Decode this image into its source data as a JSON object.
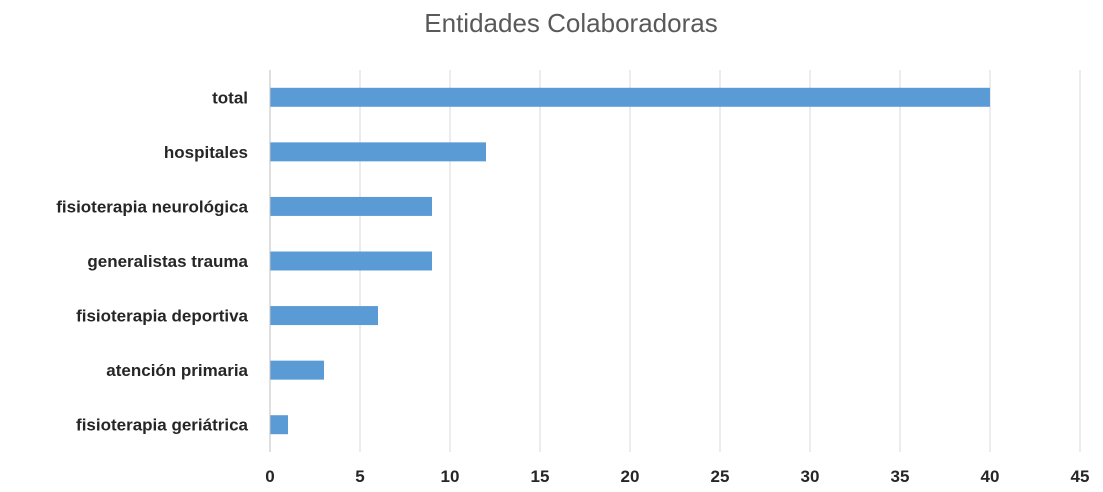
{
  "chart_data": {
    "type": "bar",
    "orientation": "horizontal",
    "title": "Entidades Colaboradoras",
    "categories": [
      "total",
      "hospitales",
      "fisioterapia neurológica",
      "generalistas trauma",
      "fisioterapia deportiva",
      "atención primaria",
      "fisioterapia geriátrica"
    ],
    "values": [
      40,
      12,
      9,
      9,
      6,
      3,
      1
    ],
    "xlim": [
      0,
      45
    ],
    "xticks": [
      "0",
      "5",
      "10",
      "15",
      "20",
      "25",
      "30",
      "35",
      "40",
      "45"
    ],
    "grid": true,
    "legend": "none",
    "bar_color": "#5b9bd5"
  }
}
